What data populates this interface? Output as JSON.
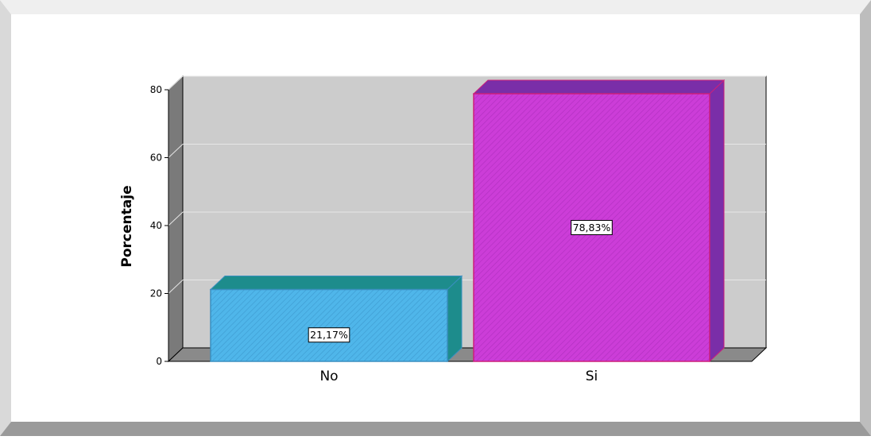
{
  "chart_data": {
    "type": "bar",
    "title": "",
    "xlabel": "",
    "ylabel": "Porcentaje",
    "ylim": [
      0,
      80
    ],
    "yticks": [
      0,
      20,
      40,
      60,
      80
    ],
    "categories": [
      "No",
      "Si"
    ],
    "values": [
      21.17,
      78.83
    ],
    "data_labels": [
      "21,17%",
      "78,83%"
    ],
    "colors": {
      "No": {
        "front": "#4fb6ea",
        "top": "#1d8c8c",
        "side": "#1d8c8c",
        "border": "#3a8fc0"
      },
      "Si": {
        "front": "#cc3dd8",
        "top": "#7a2ea8",
        "side": "#7a2ea8",
        "border": "#cc1f7a"
      }
    },
    "background": "#cccccc",
    "grid": true,
    "legend": "none",
    "bar_style": "3d-hatched"
  }
}
